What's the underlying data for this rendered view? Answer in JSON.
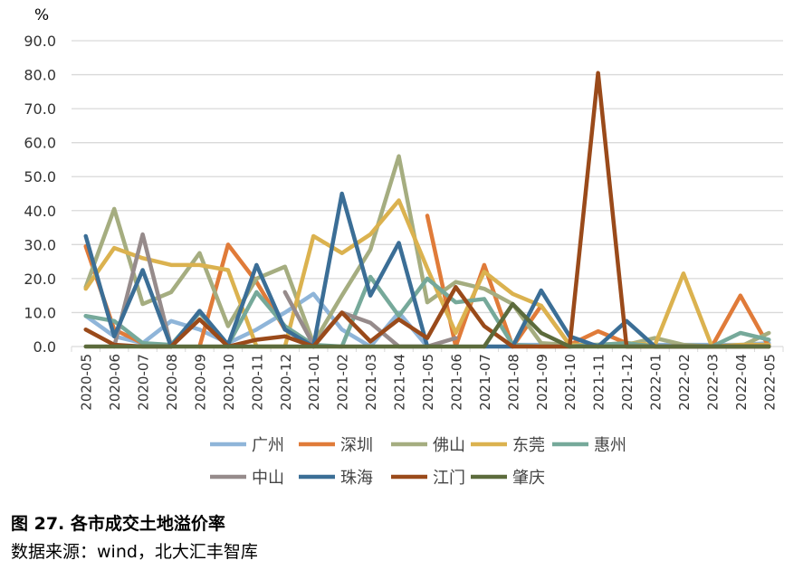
{
  "chart_data": {
    "type": "line",
    "title": "图 27. 各市成交土地溢价率",
    "source": "数据来源：wind，北大汇丰智库",
    "ylabel": "%",
    "ylim": [
      0,
      90
    ],
    "yticks": [
      "0.0",
      "10.0",
      "20.0",
      "30.0",
      "40.0",
      "50.0",
      "60.0",
      "70.0",
      "80.0",
      "90.0"
    ],
    "grid": true,
    "legend_position": "bottom",
    "categories": [
      "2020-05",
      "2020-06",
      "2020-07",
      "2020-08",
      "2020-09",
      "2020-10",
      "2020-11",
      "2020-12",
      "2021-01",
      "2021-02",
      "2021-03",
      "2021-04",
      "2021-05",
      "2021-06",
      "2021-07",
      "2021-08",
      "2021-09",
      "2021-10",
      "2021-11",
      "2021-12",
      "2022-01",
      "2022-02",
      "2022-03",
      "2022-04",
      "2022-05"
    ],
    "series": [
      {
        "name": "广州",
        "color": "#8fb5d9",
        "values": [
          9,
          3,
          1,
          7.5,
          5,
          1,
          5,
          10,
          15.5,
          5,
          0,
          10,
          0,
          null,
          null,
          0.5,
          0.5,
          0.5,
          0.5,
          0.5,
          0.5,
          0.5,
          0.5,
          0.5,
          1
        ]
      },
      {
        "name": "深圳",
        "color": "#e07b39",
        "values": [
          29.5,
          5,
          1,
          null,
          0,
          30,
          19,
          5,
          0,
          null,
          null,
          null,
          38.5,
          0,
          24,
          0,
          12,
          0.5,
          4.5,
          1,
          0,
          0,
          0,
          15,
          0
        ]
      },
      {
        "name": "佛山",
        "color": "#a5ad80",
        "values": [
          17.5,
          40.5,
          12.5,
          16,
          27.5,
          6,
          20,
          23.5,
          1,
          15,
          28.5,
          56,
          13,
          19,
          17,
          12.5,
          1,
          0.5,
          0.5,
          0.5,
          2.5,
          0.5,
          0,
          0,
          4
        ]
      },
      {
        "name": "东莞",
        "color": "#dbb24f",
        "values": [
          17,
          29,
          26,
          24,
          24,
          22.5,
          0,
          0,
          32.5,
          27.5,
          33,
          43,
          23,
          4,
          22,
          15.5,
          12,
          0.5,
          0.5,
          1,
          0.5,
          21.5,
          0,
          0.5,
          0.5
        ]
      },
      {
        "name": "惠州",
        "color": "#76a99a",
        "values": [
          9,
          7.5,
          1,
          0.5,
          10,
          0.5,
          16,
          6,
          0.5,
          0,
          20.5,
          9,
          20,
          13,
          14,
          0.5,
          0,
          0,
          0.5,
          1,
          0,
          0,
          0,
          4,
          2
        ]
      },
      {
        "name": "中山",
        "color": "#968b8b",
        "values": [
          null,
          0,
          33,
          0,
          null,
          null,
          null,
          16,
          0.5,
          10,
          7,
          0,
          0,
          2.5,
          null,
          null,
          null,
          null,
          null,
          null,
          null,
          null,
          null,
          null,
          null
        ]
      },
      {
        "name": "珠海",
        "color": "#3b6e96",
        "values": [
          32.5,
          3,
          22.5,
          0,
          10.5,
          0.5,
          24,
          5,
          0,
          45,
          15,
          30.5,
          0,
          null,
          0,
          0,
          16.5,
          3,
          0,
          7.5,
          0,
          0,
          0,
          0,
          0
        ]
      },
      {
        "name": "江门",
        "color": "#9a4a1a",
        "values": [
          5,
          0.5,
          0,
          0,
          8,
          0,
          2,
          3,
          0,
          10,
          1.5,
          8,
          2.5,
          17.5,
          6,
          0,
          0,
          0,
          80.5,
          0,
          0,
          0,
          0,
          0,
          0
        ]
      },
      {
        "name": "肇庆",
        "color": "#5c6b3c",
        "values": [
          0,
          0,
          0,
          0,
          0,
          0,
          0,
          0,
          0,
          0,
          0,
          0,
          0,
          0,
          0,
          12.5,
          4,
          0,
          0,
          0,
          0,
          0,
          0,
          0,
          0
        ]
      }
    ]
  }
}
